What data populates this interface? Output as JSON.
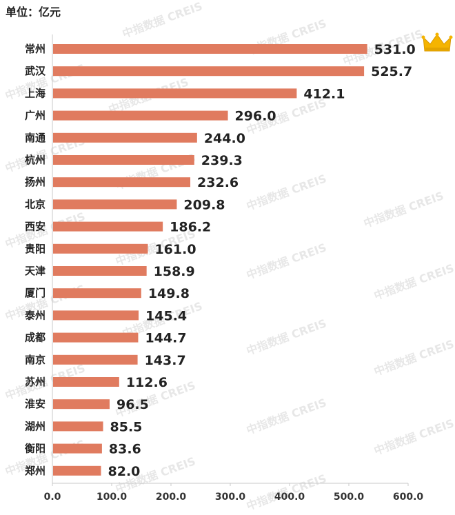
{
  "unit_label": "单位：亿元",
  "watermark_text": "中指数据 CREIS",
  "colors": {
    "bar": "#E07B5F",
    "axis": "#c8c8c8",
    "text": "#222222",
    "crown": "#F5B400"
  },
  "chart_data": {
    "type": "bar",
    "orientation": "horizontal",
    "categories": [
      "常州",
      "武汉",
      "上海",
      "广州",
      "南通",
      "杭州",
      "扬州",
      "北京",
      "西安",
      "贵阳",
      "天津",
      "厦门",
      "泰州",
      "成都",
      "南京",
      "苏州",
      "淮安",
      "湖州",
      "衡阳",
      "郑州"
    ],
    "values": [
      531.0,
      525.7,
      412.1,
      296.0,
      244.0,
      239.3,
      232.6,
      209.8,
      186.2,
      161.0,
      158.9,
      149.8,
      145.4,
      144.7,
      143.7,
      112.6,
      96.5,
      85.5,
      83.6,
      82.0
    ],
    "value_labels": [
      "531.0",
      "525.7",
      "412.1",
      "296.0",
      "244.0",
      "239.3",
      "232.6",
      "209.8",
      "186.2",
      "161.0",
      "158.9",
      "149.8",
      "145.4",
      "144.7",
      "143.7",
      "112.6",
      "96.5",
      "85.5",
      "83.6",
      "82.0"
    ],
    "xlim": [
      0,
      600
    ],
    "x_ticks": [
      "0.0",
      "100.0",
      "200.0",
      "300.0",
      "400.0",
      "500.0",
      "600.0"
    ],
    "grid": false,
    "top_marker_icon": "crown-icon"
  }
}
